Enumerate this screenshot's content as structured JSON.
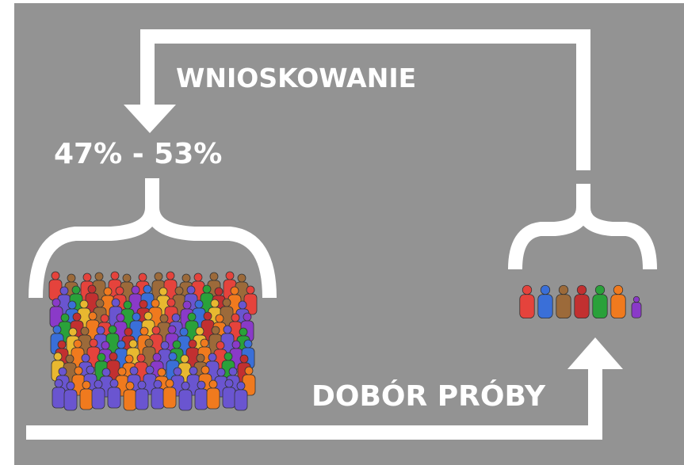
{
  "labels": {
    "inference": "WNIOSKOWANIE",
    "interval": "47% - 53%",
    "sampling": "DOBÓR PRÓBY"
  }
}
